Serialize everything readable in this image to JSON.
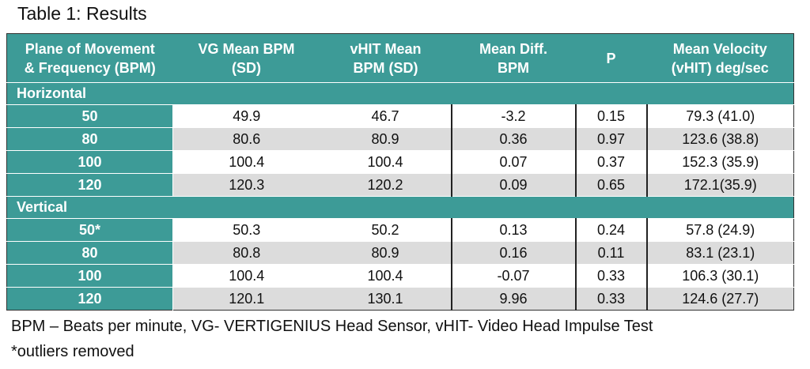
{
  "title": "Table 1: Results",
  "table": {
    "header": [
      "Plane of Movement\n& Frequency (BPM)",
      "VG Mean BPM\n(SD)",
      "vHIT Mean\nBPM (SD)",
      "Mean Diff.\nBPM",
      "P",
      "Mean Velocity\n(vHIT) deg/sec"
    ],
    "sections": [
      {
        "label": "Horizontal",
        "rows": [
          [
            "50",
            "49.9",
            "46.7",
            "-3.2",
            "0.15",
            "79.3 (41.0)"
          ],
          [
            "80",
            "80.6",
            "80.9",
            "0.36",
            "0.97",
            "123.6 (38.8)"
          ],
          [
            "100",
            "100.4",
            "100.4",
            "0.07",
            "0.37",
            "152.3 (35.9)"
          ],
          [
            "120",
            "120.3",
            "120.2",
            "0.09",
            "0.65",
            "172.1(35.9)"
          ]
        ]
      },
      {
        "label": "Vertical",
        "rows": [
          [
            "50*",
            "50.3",
            "50.2",
            "0.13",
            "0.24",
            "57.8 (24.9)"
          ],
          [
            "80",
            "80.8",
            "80.9",
            "0.16",
            "0.11",
            "83.1 (23.1)"
          ],
          [
            "100",
            "100.4",
            "100.4",
            "-0.07",
            "0.33",
            "106.3 (30.1)"
          ],
          [
            "120",
            "120.1",
            "130.1",
            "9.96",
            "0.33",
            "124.6 (27.7)"
          ]
        ]
      }
    ]
  },
  "footnotes": [
    "BPM – Beats per minute, VG- VERTIGENIUS Head Sensor, vHIT- Video Head Impulse Test",
    "*outliers removed"
  ]
}
